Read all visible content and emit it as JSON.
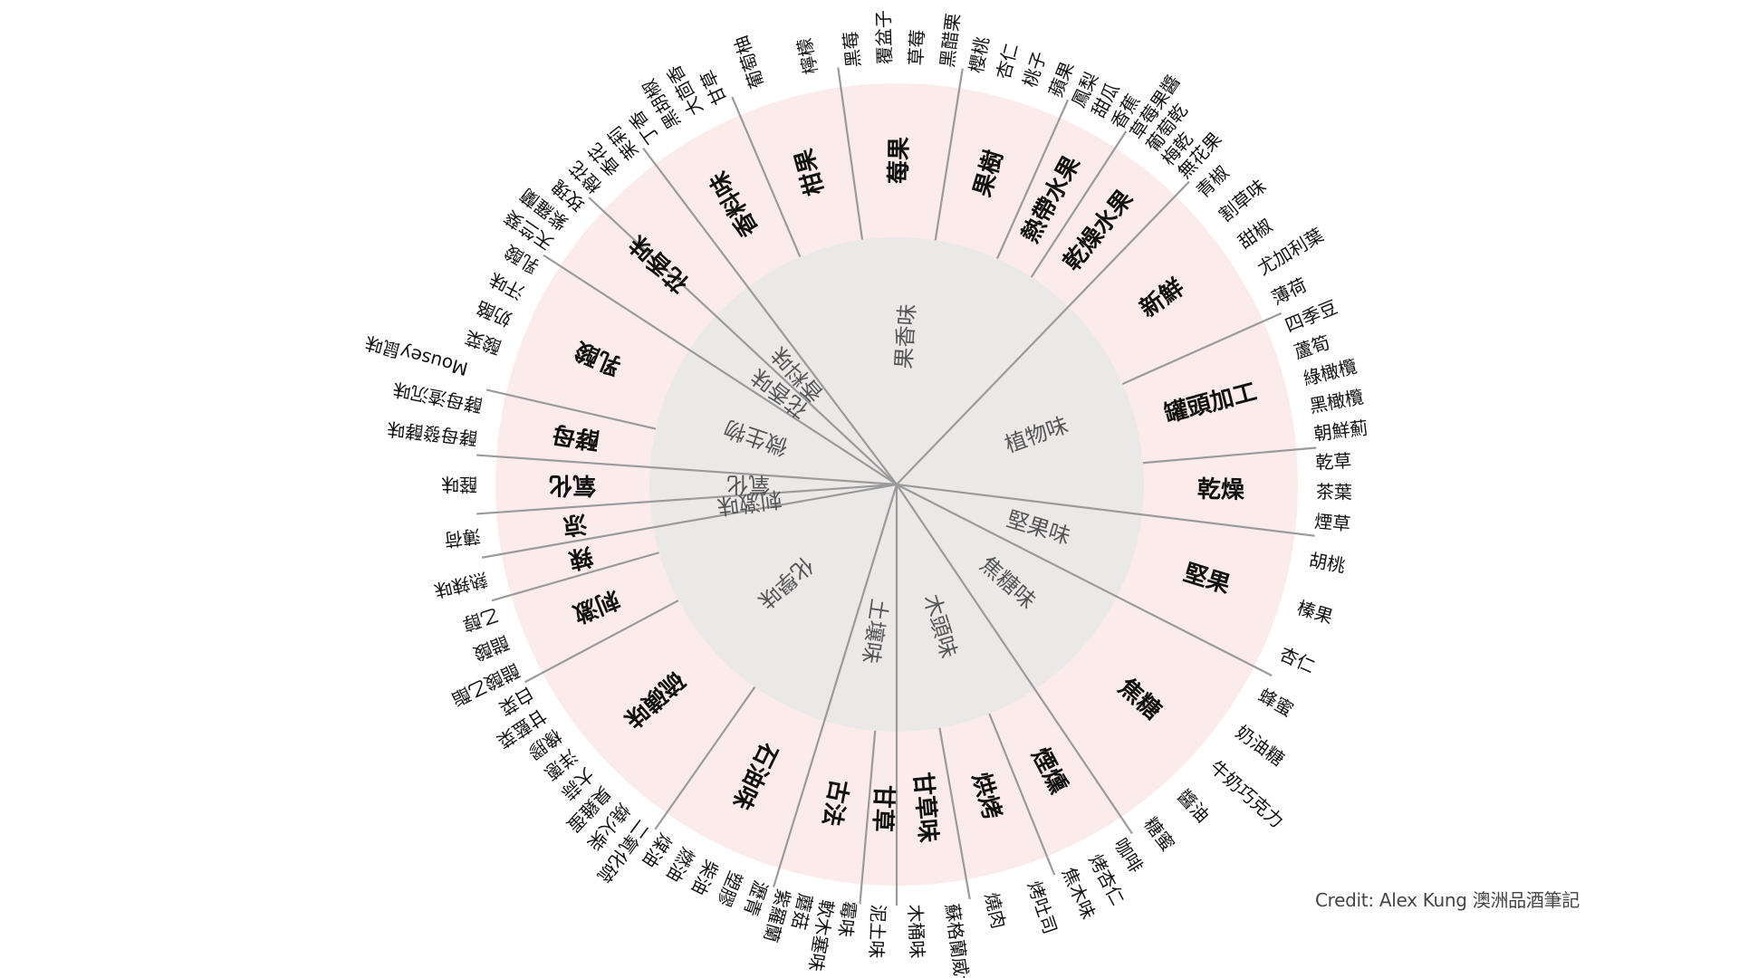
{
  "credit": "Credit: Alex Kung 澳洲品酒筆記",
  "colors": {
    "outer_ring": "#fbeceb",
    "inner_disk": "#ebe8e8",
    "divider": "#9a9a9a",
    "text": "#111111",
    "inner_text": "#555555"
  },
  "wheel": {
    "categories": [
      {
        "name": "果香味",
        "subcategories": [
          {
            "name": "柑果",
            "descriptors": [
              "葡萄柚",
              "檸檬"
            ]
          },
          {
            "name": "莓果",
            "descriptors": [
              "黑莓",
              "覆盆子",
              "草莓",
              "黑醋栗"
            ]
          },
          {
            "name": "果樹",
            "descriptors": [
              "櫻桃",
              "杏仁",
              "桃子",
              "蘋果"
            ]
          },
          {
            "name": "熱帶水果",
            "descriptors": [
              "鳳梨",
              "甜瓜",
              "香蕉"
            ]
          },
          {
            "name": "乾燥水果",
            "descriptors": [
              "草莓果醬",
              "葡萄乾",
              "梅乾",
              "無花果"
            ]
          }
        ]
      },
      {
        "name": "植物味",
        "subcategories": [
          {
            "name": "新鮮",
            "descriptors": [
              "青椒",
              "割草味",
              "甜椒",
              "尤加利葉",
              "薄荷"
            ]
          },
          {
            "name": "罐頭加工",
            "descriptors": [
              "四季豆",
              "蘆筍",
              "綠橄欖",
              "黑橄欖",
              "朝鮮薊"
            ]
          },
          {
            "name": "乾燥",
            "descriptors": [
              "乾草",
              "茶葉",
              "煙草"
            ]
          }
        ]
      },
      {
        "name": "堅果味",
        "subcategories": [
          {
            "name": "堅果",
            "descriptors": [
              "胡桃",
              "榛果",
              "杏仁"
            ]
          }
        ]
      },
      {
        "name": "焦糖味",
        "subcategories": [
          {
            "name": "焦糖",
            "descriptors": [
              "蜂蜜",
              "奶油糖",
              "牛奶巧克力",
              "醬油",
              "糖蜜"
            ]
          }
        ]
      },
      {
        "name": "木頭味",
        "subcategories": [
          {
            "name": "煙燻",
            "descriptors": [
              "咖啡",
              "烤杏仁",
              "焦木味"
            ]
          },
          {
            "name": "烘烤",
            "descriptors": [
              "烤吐司",
              "燒肉"
            ]
          },
          {
            "name": "甘草味",
            "descriptors": [
              "蘇格蘭威士忌",
              "木桶味"
            ]
          }
        ]
      },
      {
        "name": "土壤味",
        "subcategories": [
          {
            "name": "甘草",
            "descriptors": [
              "泥土味"
            ]
          },
          {
            "name": "古法",
            "descriptors": [
              "霉味",
              "軟木塞味",
              "蘑菇",
              "紫羅蘭"
            ]
          }
        ]
      },
      {
        "name": "化學味",
        "subcategories": [
          {
            "name": "石油味",
            "descriptors": [
              "瀝青",
              "塑膠",
              "柴油",
              "燃油",
              "煤油"
            ]
          },
          {
            "name": "硫磺味",
            "descriptors": [
              "二氧化硫",
              "燒火柴",
              "臭雞蛋",
              "大蒜",
              "洋蔥",
              "橡膠",
              "甘藍菜",
              "白菜"
            ]
          },
          {
            "name": "刺激",
            "descriptors": [
              "醋酸乙酯",
              "醋酸",
              "乙醇"
            ]
          },
          {
            "name": "辣",
            "descriptors": [
              "熱辣味"
            ]
          }
        ]
      },
      {
        "name": "刺激味",
        "subcategories": [
          {
            "name": "涼",
            "descriptors": [
              "薄荷"
            ]
          }
        ]
      },
      {
        "name": "氧化",
        "subcategories": [
          {
            "name": "氧化",
            "descriptors": [
              "醛味"
            ]
          }
        ]
      },
      {
        "name": "微生物",
        "subcategories": [
          {
            "name": "酵母",
            "descriptors": [
              "酵母發酵味",
              "酵母渣沉味"
            ]
          },
          {
            "name": "乳酸",
            "descriptors": [
              "Mousey鼠味",
              "酸菜",
              "奶酪",
              "汗味",
              "乳酸"
            ]
          }
        ]
      },
      {
        "name": "花香味",
        "subcategories": [
          {
            "name": "花香味",
            "descriptors": [
              "天竺葵",
              "紫羅蘭",
              "玫瑰",
              "橙花",
              "香花",
              "茉莉"
            ]
          }
        ]
      },
      {
        "name": "香料味",
        "subcategories": [
          {
            "name": "香料味",
            "descriptors": [
              "丁香",
              "黑胡椒",
              "大茴香",
              "甘草"
            ]
          }
        ]
      }
    ]
  }
}
